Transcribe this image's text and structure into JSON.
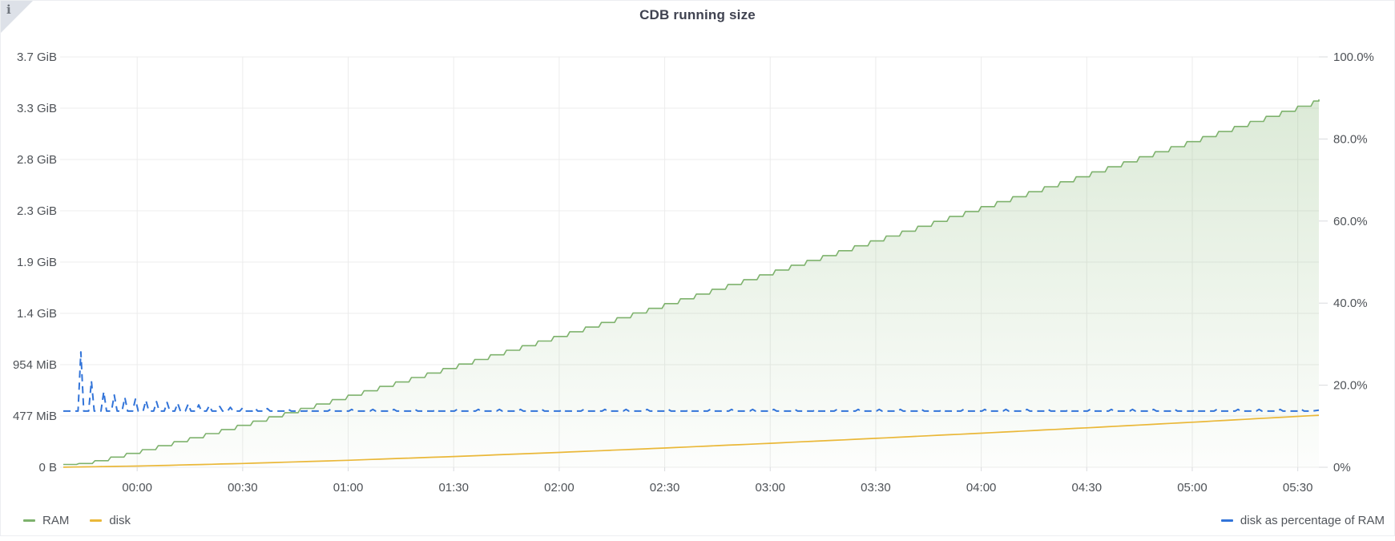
{
  "panel": {
    "title": "CDB running size",
    "info_corner_icon": "i"
  },
  "chart_data": {
    "type": "area",
    "title": "CDB running size",
    "grid": "on",
    "x_axis": {
      "unit": "time",
      "tick_labels": [
        "00:00",
        "00:30",
        "01:00",
        "01:30",
        "02:00",
        "02:30",
        "03:00",
        "03:30",
        "04:00",
        "04:30",
        "05:00",
        "05:30"
      ],
      "tick_minutes": [
        0,
        30,
        60,
        90,
        120,
        150,
        180,
        210,
        240,
        270,
        300,
        330
      ],
      "range_minutes": [
        -21,
        336
      ]
    },
    "y_axis_left": {
      "unit": "bytes",
      "max_mib": 3816,
      "ticks": [
        {
          "mib": 3816,
          "label": "3.7 GiB"
        },
        {
          "mib": 3339,
          "label": "3.3 GiB"
        },
        {
          "mib": 2862,
          "label": "2.8 GiB"
        },
        {
          "mib": 2385,
          "label": "2.3 GiB"
        },
        {
          "mib": 1908,
          "label": "1.9 GiB"
        },
        {
          "mib": 1431,
          "label": "1.4 GiB"
        },
        {
          "mib": 954,
          "label": "954 MiB"
        },
        {
          "mib": 477,
          "label": "477 MiB"
        },
        {
          "mib": 0,
          "label": "0 B"
        }
      ]
    },
    "y_axis_right": {
      "unit": "percent",
      "min": 0,
      "max": 100,
      "ticks": [
        {
          "pct": 100,
          "label": "100.0%"
        },
        {
          "pct": 80,
          "label": "80.0%"
        },
        {
          "pct": 60,
          "label": "60.0%"
        },
        {
          "pct": 40,
          "label": "40.0%"
        },
        {
          "pct": 20,
          "label": "20.0%"
        },
        {
          "pct": 0,
          "label": "0%"
        }
      ]
    },
    "legend": {
      "left": [
        "RAM",
        "disk"
      ],
      "right": [
        "disk as percentage of RAM"
      ],
      "position": "bottom"
    },
    "series": [
      {
        "name": "RAM",
        "color": "#7EB26D",
        "axis": "left",
        "style": "staircase-area",
        "step_minutes": 4.5,
        "points_t_mib": [
          [
            -21,
            26
          ],
          [
            -15,
            38
          ],
          [
            0,
            152
          ],
          [
            15,
            274
          ],
          [
            30,
            403
          ],
          [
            45,
            534
          ],
          [
            60,
            670
          ],
          [
            75,
            807
          ],
          [
            90,
            946
          ],
          [
            105,
            1088
          ],
          [
            120,
            1231
          ],
          [
            135,
            1376
          ],
          [
            150,
            1522
          ],
          [
            165,
            1670
          ],
          [
            180,
            1819
          ],
          [
            195,
            1968
          ],
          [
            210,
            2120
          ],
          [
            225,
            2271
          ],
          [
            240,
            2424
          ],
          [
            255,
            2578
          ],
          [
            270,
            2732
          ],
          [
            285,
            2887
          ],
          [
            300,
            3044
          ],
          [
            315,
            3200
          ],
          [
            330,
            3358
          ],
          [
            336,
            3421
          ]
        ]
      },
      {
        "name": "disk",
        "color": "#EAB839",
        "axis": "left",
        "style": "line",
        "points_t_mib": [
          [
            -21,
            1
          ],
          [
            0,
            11
          ],
          [
            30,
            35
          ],
          [
            60,
            65
          ],
          [
            90,
            100
          ],
          [
            120,
            138
          ],
          [
            150,
            179
          ],
          [
            180,
            223
          ],
          [
            210,
            269
          ],
          [
            240,
            317
          ],
          [
            270,
            367
          ],
          [
            300,
            419
          ],
          [
            330,
            473
          ],
          [
            336,
            484
          ]
        ]
      },
      {
        "name": "disk as percentage of RAM",
        "color": "#3274D9",
        "axis": "right",
        "style": "dashed-line",
        "baseline_pct": 13.7,
        "end_pct": 13.9,
        "spikes_t_pct": [
          [
            -16,
            28.1
          ],
          [
            -13,
            21
          ],
          [
            -9.5,
            18.4
          ],
          [
            -6.5,
            17.6
          ],
          [
            -3.5,
            17
          ],
          [
            -0.5,
            16.6
          ],
          [
            2.5,
            16.3
          ],
          [
            5.5,
            16
          ],
          [
            8.5,
            15.8
          ],
          [
            11.5,
            15.6
          ],
          [
            14.5,
            15.4
          ],
          [
            17.5,
            15.2
          ],
          [
            20.5,
            15
          ],
          [
            23.5,
            14.8
          ],
          [
            26.5,
            14.6
          ],
          [
            30,
            14.5
          ],
          [
            33.5,
            14.4
          ],
          [
            37,
            14.3
          ],
          [
            43,
            14.1
          ],
          [
            49,
            14.1
          ],
          [
            55,
            14.1
          ],
          [
            61,
            14.1
          ],
          [
            67,
            14.1
          ],
          [
            73,
            14.1
          ],
          [
            79,
            14.1
          ],
          [
            85,
            14.1
          ],
          [
            91,
            14.1
          ],
          [
            97,
            14.1
          ],
          [
            103,
            14.1
          ],
          [
            109,
            14.1
          ],
          [
            115,
            14.1
          ],
          [
            121,
            14.1
          ],
          [
            127,
            14.1
          ],
          [
            133,
            14.1
          ],
          [
            139,
            14.1
          ],
          [
            145,
            14.1
          ],
          [
            151,
            14.1
          ],
          [
            157,
            14.1
          ],
          [
            163,
            14.1
          ],
          [
            169,
            14.1
          ],
          [
            175,
            14.1
          ],
          [
            181,
            14.1
          ],
          [
            187,
            14.1
          ],
          [
            193,
            14.1
          ],
          [
            199,
            14.1
          ],
          [
            205,
            14.1
          ],
          [
            211,
            14.1
          ],
          [
            217,
            14.1
          ],
          [
            223,
            14.1
          ],
          [
            229,
            14.1
          ],
          [
            235,
            14.1
          ],
          [
            241,
            14.1
          ],
          [
            247,
            14.1
          ],
          [
            253,
            14.1
          ],
          [
            259,
            14.1
          ],
          [
            265,
            14.1
          ],
          [
            271,
            14.1
          ],
          [
            277,
            14.1
          ],
          [
            283,
            14.1
          ],
          [
            289,
            14.1
          ],
          [
            295,
            14.1
          ],
          [
            301,
            14.1
          ],
          [
            307,
            14.1
          ],
          [
            313,
            14.1
          ],
          [
            319,
            14.1
          ],
          [
            325,
            14.1
          ],
          [
            331,
            14.1
          ]
        ]
      }
    ]
  },
  "colors": {
    "grid": "#ececec",
    "tick_stub": "#d9dbde",
    "axis_text": "#4e5257",
    "title_text": "#3f4250",
    "legend_text": "#52565c",
    "panel_border": "#eceef1",
    "info_corner_bg": "#dde1e8",
    "info_icon": "#6f757d",
    "area_fill_top_opacity": 0.3,
    "area_fill_bottom_opacity": 0.02
  }
}
